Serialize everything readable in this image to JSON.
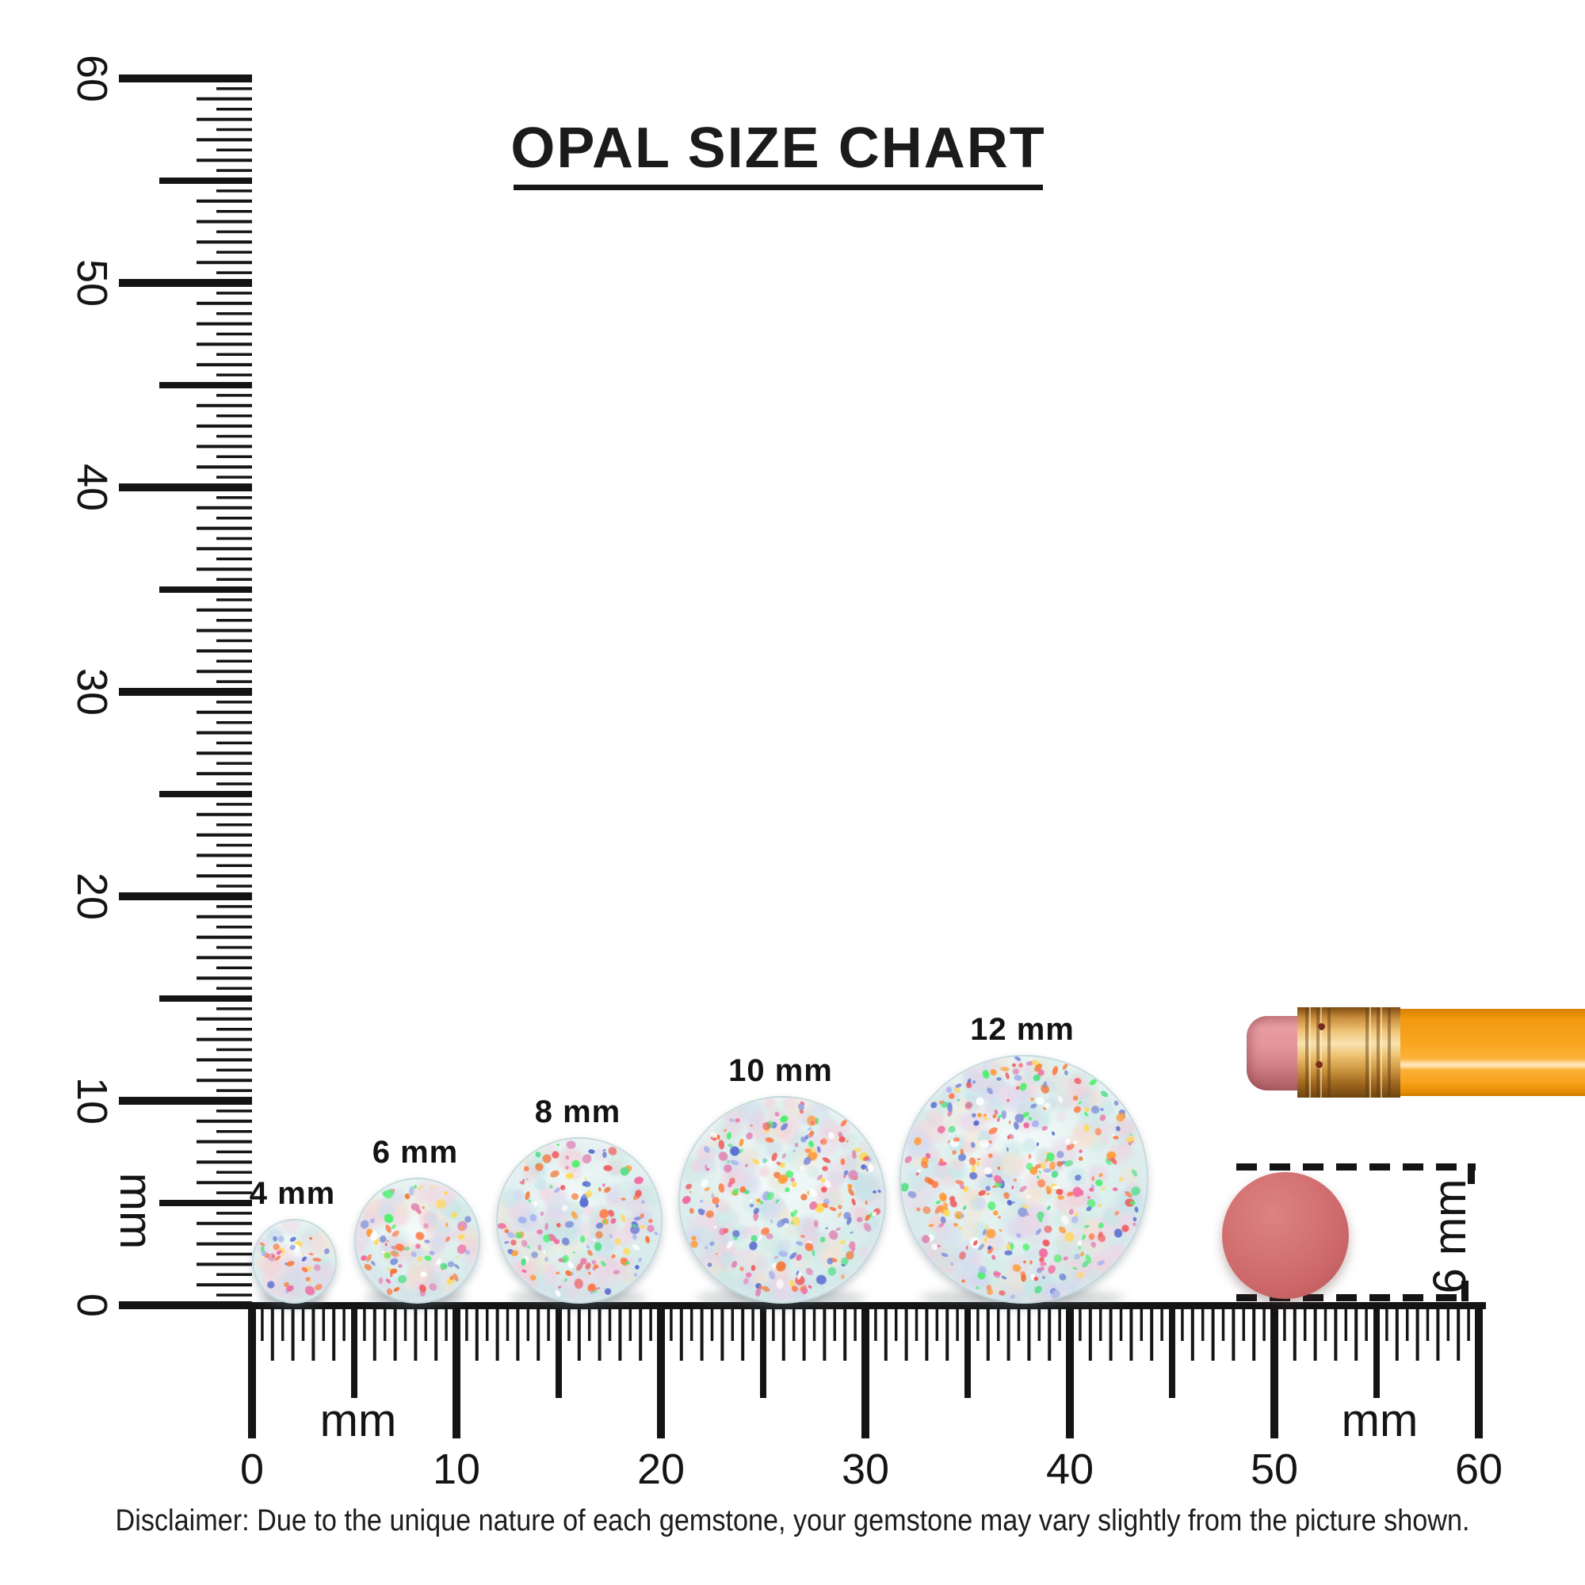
{
  "title": {
    "text": "OPAL SIZE CHART"
  },
  "rulers": {
    "unit_label": "mm",
    "range_mm": [
      0,
      60
    ],
    "vertical_major_labels": [
      "0",
      "10",
      "20",
      "30",
      "40",
      "50",
      "60"
    ],
    "horizontal_major_labels": [
      "0",
      "10",
      "20",
      "30",
      "40",
      "50",
      "60"
    ]
  },
  "opals": [
    {
      "label": "4 mm",
      "size_mm": 4
    },
    {
      "label": "6 mm",
      "size_mm": 6
    },
    {
      "label": "8 mm",
      "size_mm": 8
    },
    {
      "label": "10 mm",
      "size_mm": 10
    },
    {
      "label": "12 mm",
      "size_mm": 12
    }
  ],
  "reference": {
    "eraser_dot_label": "6 mm"
  },
  "disclaimer": {
    "text": "Disclaimer: Due to the unique nature of each gemstone, your gemstone may vary slightly from the picture shown."
  },
  "colors": {
    "ink": "#141414",
    "pencil_orange": "#f8a51e",
    "pencil_gold": "#e8bd72",
    "pencil_eraser_pink": "#dd8e94",
    "eraser_dot_red": "#cd6a6c",
    "opal_base": "#e4f2f1",
    "opal_palette": [
      "#ff9d3c",
      "#f4793a",
      "#ef5f62",
      "#ff7f4d",
      "#4ef06e",
      "#58e08a",
      "#7e8fd8",
      "#5a6fd0",
      "#e08ab8",
      "#ffd95e",
      "#f06aa0",
      "#a9b4ec",
      "#ffffff"
    ],
    "opal_pastels": [
      "#bfe4ea",
      "#cde9e2",
      "#e8d7e8",
      "#f3cfd8",
      "#d3d8f0",
      "#f6e3d0",
      "#d9f0ea",
      "#f0d6e6"
    ]
  },
  "chart_data": {
    "type": "table",
    "title": "OPAL SIZE CHART",
    "unit": "mm",
    "opal_sizes_mm": [
      4,
      6,
      8,
      10,
      12
    ],
    "ruler_length_mm": 60,
    "reference_object": "pencil eraser dot",
    "reference_diameter_mm": 6
  }
}
